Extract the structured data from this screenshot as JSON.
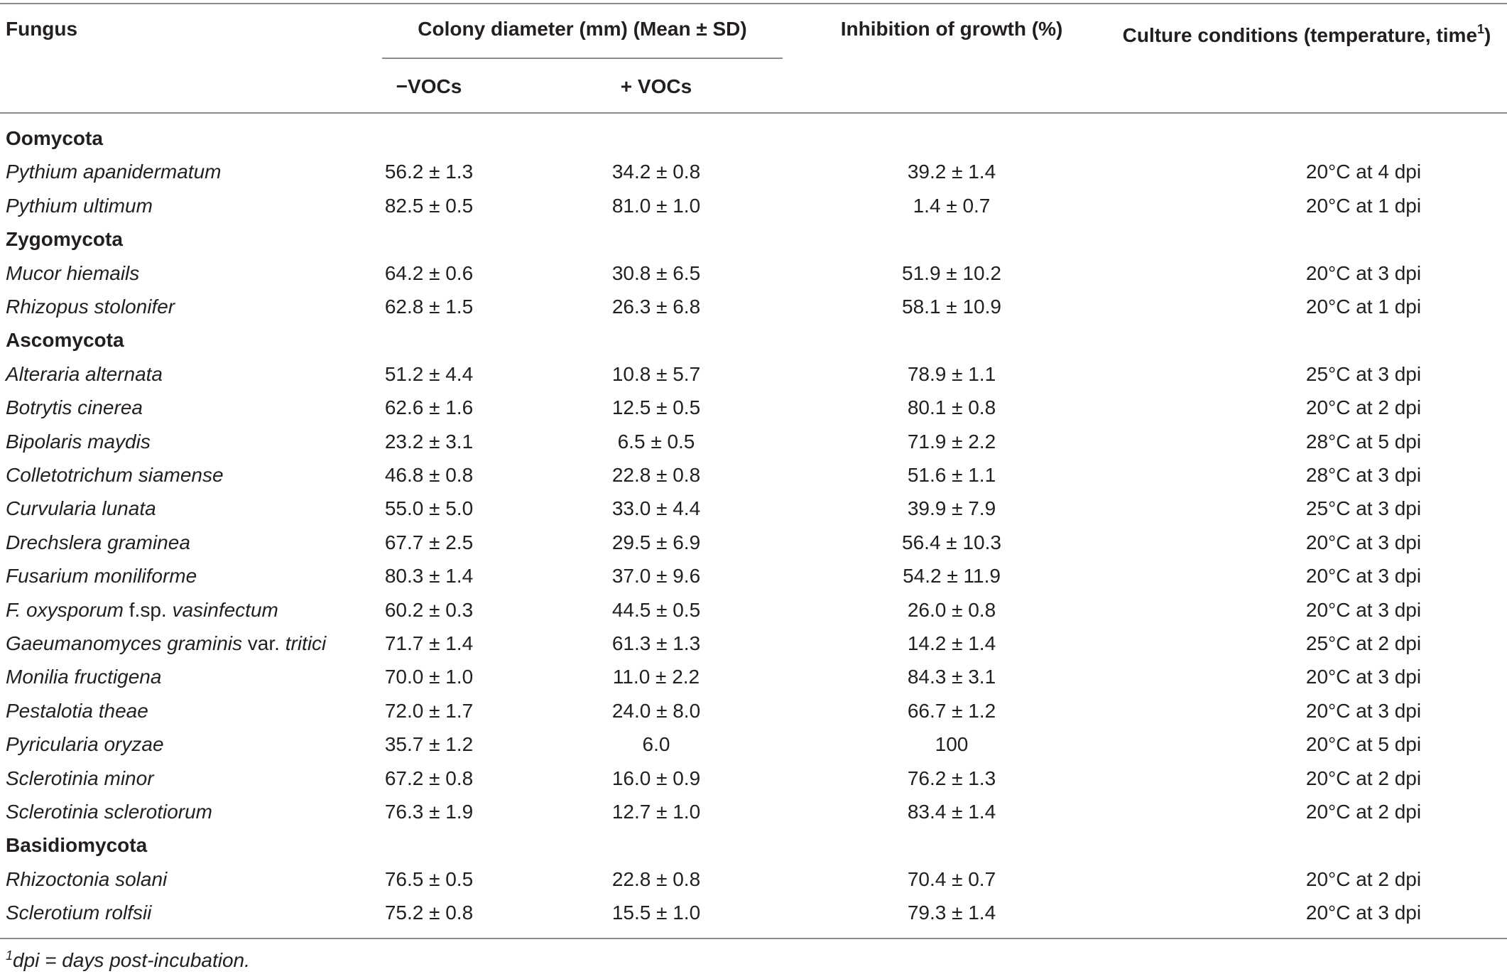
{
  "headers": {
    "fungus": "Fungus",
    "colony": "Colony diameter (mm) (Mean ± SD)",
    "minus_vocs": "−VOCs",
    "plus_vocs": "+ VOCs",
    "inhibition": "Inhibition of growth (%)",
    "conditions": "Culture conditions (temperature, time",
    "conditions_sup": "1",
    "conditions_close": ")"
  },
  "rows": [
    {
      "type": "group",
      "name": "Oomycota"
    },
    {
      "type": "data",
      "name": "Pythium apanidermatum",
      "minus": "56.2 ± 1.3",
      "plus": "34.2 ± 0.8",
      "inhibition": "39.2 ± 1.4",
      "conditions": "20°C at 4 dpi"
    },
    {
      "type": "data",
      "name": "Pythium ultimum",
      "minus": "82.5 ± 0.5",
      "plus": "81.0 ± 1.0",
      "inhibition": "1.4 ± 0.7",
      "conditions": "20°C at 1 dpi"
    },
    {
      "type": "group",
      "name": "Zygomycota"
    },
    {
      "type": "data",
      "name": "Mucor hiemails",
      "minus": "64.2 ± 0.6",
      "plus": "30.8 ± 6.5",
      "inhibition": "51.9 ± 10.2",
      "conditions": "20°C at 3 dpi"
    },
    {
      "type": "data",
      "name": "Rhizopus stolonifer",
      "minus": "62.8 ± 1.5",
      "plus": "26.3 ± 6.8",
      "inhibition": "58.1 ± 10.9",
      "conditions": "20°C at 1 dpi"
    },
    {
      "type": "group",
      "name": "Ascomycota"
    },
    {
      "type": "data",
      "name": "Alteraria alternata",
      "minus": "51.2 ± 4.4",
      "plus": "10.8 ± 5.7",
      "inhibition": "78.9 ± 1.1",
      "conditions": "25°C at 3 dpi"
    },
    {
      "type": "data",
      "name": "Botrytis cinerea",
      "minus": "62.6 ± 1.6",
      "plus": "12.5 ± 0.5",
      "inhibition": "80.1 ± 0.8",
      "conditions": "20°C at 2 dpi"
    },
    {
      "type": "data",
      "name": "Bipolaris maydis",
      "minus": "23.2 ± 3.1",
      "plus": "6.5 ± 0.5",
      "inhibition": "71.9 ± 2.2",
      "conditions": "28°C at 5 dpi"
    },
    {
      "type": "data",
      "name": "Colletotrichum siamense",
      "minus": "46.8 ± 0.8",
      "plus": "22.8 ± 0.8",
      "inhibition": "51.6 ± 1.1",
      "conditions": "28°C at 3 dpi"
    },
    {
      "type": "data",
      "name": "Curvularia lunata",
      "minus": "55.0 ± 5.0",
      "plus": "33.0 ± 4.4",
      "inhibition": "39.9 ± 7.9",
      "conditions": "25°C at 3 dpi"
    },
    {
      "type": "data",
      "name": "Drechslera graminea",
      "minus": "67.7 ± 2.5",
      "plus": "29.5 ± 6.9",
      "inhibition": "56.4 ± 10.3",
      "conditions": "20°C at 3 dpi"
    },
    {
      "type": "data",
      "name": "Fusarium moniliforme",
      "minus": "80.3 ± 1.4",
      "plus": "37.0 ± 9.6",
      "inhibition": "54.2 ± 11.9",
      "conditions": "20°C at 3 dpi"
    },
    {
      "type": "data",
      "name": "F. oxysporum",
      "name_plain": " f.sp. ",
      "name_tail": "vasinfectum",
      "minus": "60.2 ± 0.3",
      "plus": "44.5 ± 0.5",
      "inhibition": "26.0 ± 0.8",
      "conditions": "20°C at 3 dpi"
    },
    {
      "type": "data",
      "name": "Gaeumanomyces graminis",
      "name_plain": " var. ",
      "name_tail": "tritici",
      "minus": "71.7 ± 1.4",
      "plus": "61.3 ± 1.3",
      "inhibition": "14.2 ± 1.4",
      "conditions": "25°C at 2 dpi"
    },
    {
      "type": "data",
      "name": "Monilia fructigena",
      "minus": "70.0 ± 1.0",
      "plus": "11.0 ± 2.2",
      "inhibition": "84.3 ± 3.1",
      "conditions": "20°C at 3 dpi"
    },
    {
      "type": "data",
      "name": "Pestalotia theae",
      "minus": "72.0 ± 1.7",
      "plus": "24.0 ± 8.0",
      "inhibition": "66.7 ± 1.2",
      "conditions": "20°C at 3 dpi"
    },
    {
      "type": "data",
      "name": "Pyricularia oryzae",
      "minus": "35.7 ± 1.2",
      "plus": "6.0",
      "inhibition": "100",
      "conditions": "20°C at 5 dpi"
    },
    {
      "type": "data",
      "name": "Sclerotinia minor",
      "minus": "67.2 ± 0.8",
      "plus": "16.0 ± 0.9",
      "inhibition": "76.2 ± 1.3",
      "conditions": "20°C at 2 dpi"
    },
    {
      "type": "data",
      "name": "Sclerotinia sclerotiorum",
      "minus": "76.3 ± 1.9",
      "plus": "12.7 ± 1.0",
      "inhibition": "83.4 ± 1.4",
      "conditions": "20°C at 2 dpi"
    },
    {
      "type": "group",
      "name": "Basidiomycota"
    },
    {
      "type": "data",
      "name": "Rhizoctonia solani",
      "minus": "76.5 ± 0.5",
      "plus": "22.8 ± 0.8",
      "inhibition": "70.4 ± 0.7",
      "conditions": "20°C at 2 dpi"
    },
    {
      "type": "data",
      "name": "Sclerotium rolfsii",
      "minus": "75.2 ± 0.8",
      "plus": "15.5 ± 1.0",
      "inhibition": "79.3 ± 1.4",
      "conditions": "20°C at 3 dpi"
    }
  ],
  "footnote": {
    "marker": "1",
    "text": "dpi = days post-incubation."
  }
}
